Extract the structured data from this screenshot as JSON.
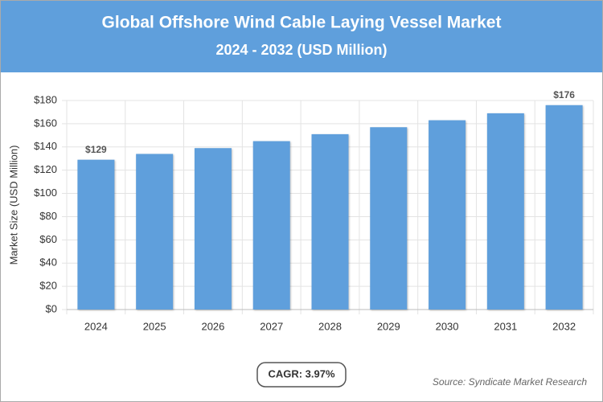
{
  "chart_data": {
    "type": "bar",
    "title": "Global Offshore Wind Cable Laying Vessel Market",
    "subtitle": "2024 - 2032 (USD Million)",
    "y_label": "Market Size (USD Million)",
    "categories": [
      "2024",
      "2025",
      "2026",
      "2027",
      "2028",
      "2029",
      "2030",
      "2031",
      "2032"
    ],
    "values": [
      129,
      134,
      139,
      145,
      151,
      157,
      163,
      169,
      176
    ],
    "value_labels": [
      "$129",
      null,
      null,
      null,
      null,
      null,
      null,
      null,
      "$176"
    ],
    "color": "#5f9fdc",
    "ylim": [
      0,
      180
    ],
    "yticks": [
      {
        "value": 0,
        "label": "$0"
      },
      {
        "value": 20,
        "label": "$20"
      },
      {
        "value": 40,
        "label": "$40"
      },
      {
        "value": 60,
        "label": "$60"
      },
      {
        "value": 80,
        "label": "$80"
      },
      {
        "value": 100,
        "label": "$100"
      },
      {
        "value": 120,
        "label": "$120"
      },
      {
        "value": 140,
        "label": "$140"
      },
      {
        "value": 160,
        "label": "$160"
      },
      {
        "value": 180,
        "label": "$180"
      }
    ],
    "grid": true,
    "annotation": "CAGR: 3.97%",
    "source": "Source: Syndicate Market Research"
  }
}
